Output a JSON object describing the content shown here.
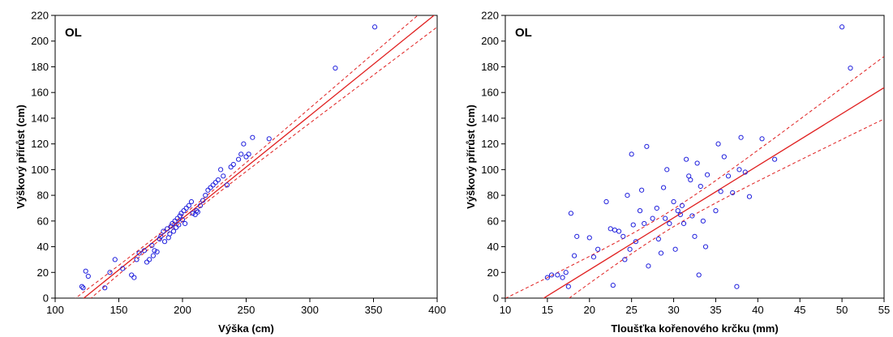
{
  "chart_data": [
    {
      "type": "scatter",
      "annotation": "OL",
      "xlabel": "Výška (cm)",
      "ylabel": "Výškový přírůst (cm)",
      "xlim": [
        100,
        400
      ],
      "ylim": [
        0,
        220
      ],
      "xticks": [
        100,
        150,
        200,
        250,
        300,
        350,
        400
      ],
      "yticks": [
        0,
        20,
        40,
        60,
        80,
        100,
        120,
        140,
        160,
        180,
        200,
        220
      ],
      "points": [
        [
          121,
          9
        ],
        [
          122,
          8
        ],
        [
          124,
          21
        ],
        [
          126,
          17
        ],
        [
          139,
          8
        ],
        [
          143,
          20
        ],
        [
          147,
          30
        ],
        [
          153,
          23
        ],
        [
          160,
          18
        ],
        [
          162,
          16
        ],
        [
          164,
          30
        ],
        [
          166,
          35
        ],
        [
          170,
          37
        ],
        [
          172,
          28
        ],
        [
          174,
          30
        ],
        [
          176,
          41
        ],
        [
          177,
          33
        ],
        [
          178,
          37
        ],
        [
          180,
          36
        ],
        [
          182,
          46
        ],
        [
          183,
          48
        ],
        [
          185,
          52
        ],
        [
          186,
          44
        ],
        [
          188,
          54
        ],
        [
          189,
          47
        ],
        [
          190,
          50
        ],
        [
          191,
          56
        ],
        [
          192,
          58
        ],
        [
          193,
          52
        ],
        [
          194,
          60
        ],
        [
          195,
          55
        ],
        [
          196,
          62
        ],
        [
          197,
          57
        ],
        [
          198,
          64
        ],
        [
          199,
          66
        ],
        [
          200,
          61
        ],
        [
          201,
          68
        ],
        [
          202,
          58
        ],
        [
          203,
          70
        ],
        [
          205,
          72
        ],
        [
          207,
          75
        ],
        [
          208,
          66
        ],
        [
          210,
          65
        ],
        [
          211,
          68
        ],
        [
          212,
          67
        ],
        [
          214,
          72
        ],
        [
          216,
          76
        ],
        [
          218,
          80
        ],
        [
          220,
          84
        ],
        [
          222,
          86
        ],
        [
          224,
          88
        ],
        [
          226,
          90
        ],
        [
          228,
          92
        ],
        [
          230,
          100
        ],
        [
          232,
          95
        ],
        [
          235,
          88
        ],
        [
          238,
          102
        ],
        [
          240,
          104
        ],
        [
          244,
          108
        ],
        [
          246,
          112
        ],
        [
          248,
          120
        ],
        [
          250,
          110
        ],
        [
          252,
          112
        ],
        [
          255,
          125
        ],
        [
          268,
          124
        ],
        [
          320,
          179
        ],
        [
          351,
          211
        ]
      ],
      "fit": {
        "slope": 0.8,
        "intercept": -98
      }
    },
    {
      "type": "scatter",
      "annotation": "OL",
      "xlabel": "Tloušťka kořenového krčku (mm)",
      "ylabel": "Výškový přírůst (cm)",
      "xlim": [
        10,
        55
      ],
      "ylim": [
        0,
        220
      ],
      "xticks": [
        10,
        15,
        20,
        25,
        30,
        35,
        40,
        45,
        50,
        55
      ],
      "yticks": [
        0,
        20,
        40,
        60,
        80,
        100,
        120,
        140,
        160,
        180,
        200,
        220
      ],
      "points": [
        [
          15,
          16
        ],
        [
          15.5,
          18
        ],
        [
          16.2,
          18
        ],
        [
          16.8,
          16
        ],
        [
          17.2,
          20
        ],
        [
          17.5,
          9
        ],
        [
          17.8,
          66
        ],
        [
          18.2,
          33
        ],
        [
          18.5,
          48
        ],
        [
          20,
          47
        ],
        [
          20.5,
          32
        ],
        [
          21,
          38
        ],
        [
          22,
          75
        ],
        [
          22.5,
          54
        ],
        [
          22.8,
          10
        ],
        [
          23,
          53
        ],
        [
          23.5,
          52
        ],
        [
          24,
          48
        ],
        [
          24.2,
          30
        ],
        [
          24.5,
          80
        ],
        [
          24.8,
          38
        ],
        [
          25,
          112
        ],
        [
          25.2,
          57
        ],
        [
          25.5,
          44
        ],
        [
          26,
          68
        ],
        [
          26.2,
          84
        ],
        [
          26.5,
          58
        ],
        [
          26.8,
          118
        ],
        [
          27,
          25
        ],
        [
          27.5,
          62
        ],
        [
          28,
          70
        ],
        [
          28.2,
          46
        ],
        [
          28.5,
          35
        ],
        [
          28.8,
          86
        ],
        [
          29,
          62
        ],
        [
          29.2,
          100
        ],
        [
          29.5,
          58
        ],
        [
          30,
          75
        ],
        [
          30.2,
          38
        ],
        [
          30.5,
          68
        ],
        [
          30.8,
          65
        ],
        [
          31,
          72
        ],
        [
          31.2,
          58
        ],
        [
          31.5,
          108
        ],
        [
          31.8,
          95
        ],
        [
          32,
          92
        ],
        [
          32.2,
          64
        ],
        [
          32.5,
          48
        ],
        [
          32.8,
          105
        ],
        [
          33,
          18
        ],
        [
          33.2,
          87
        ],
        [
          33.5,
          60
        ],
        [
          33.8,
          40
        ],
        [
          34,
          96
        ],
        [
          35,
          68
        ],
        [
          35.3,
          120
        ],
        [
          35.6,
          83
        ],
        [
          36,
          110
        ],
        [
          36.5,
          95
        ],
        [
          37,
          82
        ],
        [
          37.5,
          9
        ],
        [
          37.8,
          100
        ],
        [
          38,
          125
        ],
        [
          38.5,
          98
        ],
        [
          39,
          79
        ],
        [
          40.5,
          124
        ],
        [
          42,
          108
        ],
        [
          50,
          211
        ],
        [
          51,
          179
        ]
      ],
      "fit": {
        "slope": 4.05,
        "intercept": -59
      }
    }
  ]
}
